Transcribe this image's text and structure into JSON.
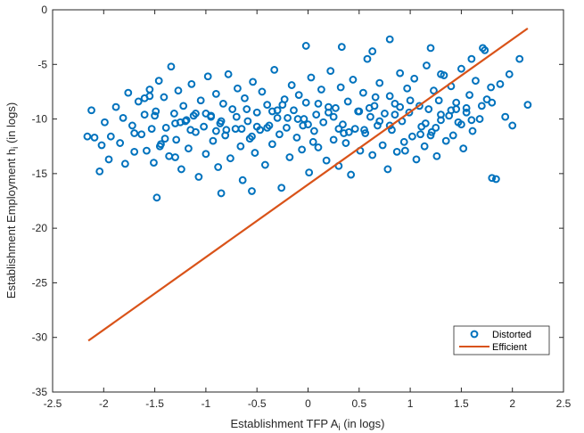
{
  "chart_data": {
    "type": "scatter",
    "xlabel": "Establishment TFP A",
    "xlabel_sub": "i",
    "xlabel_suffix": " (in logs)",
    "ylabel": "Establishment Employment h",
    "ylabel_sub": "i",
    "ylabel_suffix": " (in logs)",
    "xlim": [
      -2.5,
      2.5
    ],
    "ylim": [
      -35,
      0
    ],
    "xticks": [
      -2.5,
      -2,
      -1.5,
      -1,
      -0.5,
      0,
      0.5,
      1,
      1.5,
      2,
      2.5
    ],
    "yticks": [
      0,
      -5,
      -10,
      -15,
      -20,
      -25,
      -30,
      -35
    ],
    "grid": false,
    "legend_position": "bottom-right",
    "series": [
      {
        "name": "Distorted",
        "kind": "scatter",
        "color": "#0072BD",
        "marker": "circle",
        "x": [
          -2.16,
          -2.12,
          -2.09,
          -2.04,
          -2.02,
          -1.99,
          -1.95,
          -1.93,
          -1.88,
          -1.84,
          -1.81,
          -1.79,
          -1.76,
          -1.72,
          -1.7,
          -1.66,
          -1.63,
          -1.6,
          -1.58,
          -1.55,
          -1.53,
          -1.51,
          -1.49,
          -1.46,
          -1.44,
          -1.41,
          -1.39,
          -1.36,
          -1.34,
          -1.31,
          -1.29,
          -1.27,
          -1.24,
          -1.22,
          -1.19,
          -1.17,
          -1.14,
          -1.12,
          -1.1,
          -1.07,
          -1.05,
          -1.02,
          -1.0,
          -0.98,
          -0.95,
          -0.93,
          -0.9,
          -0.88,
          -0.86,
          -0.83,
          -0.81,
          -0.78,
          -0.76,
          -0.74,
          -0.71,
          -0.69,
          -0.66,
          -0.64,
          -0.62,
          -0.59,
          -0.57,
          -0.54,
          -0.52,
          -0.5,
          -0.47,
          -0.45,
          -0.42,
          -0.4,
          -0.38,
          -0.35,
          -0.33,
          -0.3,
          -0.28,
          -0.26,
          -0.23,
          -0.21,
          -0.18,
          -0.16,
          -0.14,
          -0.11,
          -0.09,
          -0.06,
          -0.04,
          -0.02,
          0.01,
          0.03,
          0.06,
          0.08,
          0.1,
          0.13,
          0.15,
          0.18,
          0.2,
          0.22,
          0.25,
          0.27,
          0.3,
          0.32,
          0.34,
          0.37,
          0.39,
          0.42,
          0.44,
          0.46,
          0.49,
          0.51,
          0.54,
          0.56,
          0.58,
          0.61,
          0.63,
          0.66,
          0.68,
          0.7,
          0.73,
          0.75,
          0.78,
          0.8,
          0.82,
          0.85,
          0.87,
          0.9,
          0.92,
          0.94,
          0.97,
          0.99,
          1.02,
          1.04,
          1.06,
          1.09,
          1.11,
          1.14,
          1.16,
          1.18,
          1.21,
          1.23,
          1.26,
          1.28,
          1.3,
          1.33,
          1.35,
          1.38,
          1.4,
          1.42,
          1.45,
          1.47,
          1.5,
          1.52,
          1.55,
          1.58,
          1.61,
          1.64,
          1.68,
          1.71,
          1.75,
          1.79,
          1.84,
          1.88,
          1.93,
          2.0,
          2.07,
          2.15,
          -1.7,
          -1.5,
          -1.3,
          -1.1,
          -0.9,
          -0.7,
          -0.5,
          -0.3,
          -0.1,
          0.1,
          0.3,
          0.5,
          0.7,
          0.9,
          1.1,
          1.3,
          1.5,
          1.7,
          -1.6,
          -1.4,
          -1.2,
          -1.0,
          -0.8,
          -0.6,
          -0.4,
          -0.2,
          0.0,
          0.2,
          0.4,
          0.6,
          0.8,
          1.0,
          1.2,
          1.4,
          1.6,
          1.8,
          -1.55,
          -1.25,
          -0.95,
          -0.65,
          -0.35,
          -0.05,
          0.25,
          0.55,
          0.85,
          1.15,
          1.45,
          -1.45,
          -1.15,
          -0.85,
          -0.55,
          -0.25,
          0.05,
          0.35,
          0.65,
          0.95,
          1.25,
          1.55,
          -0.02,
          0.33,
          0.63,
          0.8,
          1.2,
          1.3,
          1.6,
          1.73,
          1.97,
          -1.3,
          -0.55,
          -0.85,
          -1.48,
          1.8
        ],
        "y": [
          -11.6,
          -9.2,
          -11.7,
          -14.8,
          -12.4,
          -10.3,
          -13.7,
          -11.6,
          -8.9,
          -12.2,
          -9.9,
          -14.1,
          -7.6,
          -10.6,
          -13.0,
          -8.4,
          -11.4,
          -9.6,
          -12.9,
          -7.9,
          -10.9,
          -14.0,
          -9.3,
          -6.5,
          -12.3,
          -8.0,
          -10.8,
          -13.4,
          -5.2,
          -9.5,
          -11.9,
          -7.4,
          -14.6,
          -8.8,
          -10.1,
          -12.7,
          -6.8,
          -9.7,
          -11.2,
          -15.3,
          -8.3,
          -10.7,
          -13.2,
          -6.1,
          -9.8,
          -12.0,
          -7.7,
          -14.4,
          -10.4,
          -8.6,
          -11.5,
          -5.9,
          -13.6,
          -9.1,
          -10.9,
          -7.2,
          -12.5,
          -15.6,
          -8.1,
          -10.2,
          -11.8,
          -6.6,
          -13.1,
          -9.4,
          -11.0,
          -7.5,
          -14.2,
          -8.7,
          -10.6,
          -12.3,
          -5.5,
          -9.9,
          -11.4,
          -16.3,
          -8.2,
          -10.8,
          -13.5,
          -6.9,
          -9.2,
          -11.7,
          -7.8,
          -12.8,
          -10.0,
          -8.5,
          -14.9,
          -6.2,
          -11.1,
          -9.6,
          -12.6,
          -7.3,
          -10.3,
          -13.8,
          -8.9,
          -5.6,
          -11.9,
          -9.0,
          -14.3,
          -7.1,
          -10.5,
          -12.2,
          -8.4,
          -15.1,
          -6.4,
          -10.9,
          -9.3,
          -12.9,
          -7.6,
          -11.3,
          -4.5,
          -9.8,
          -13.3,
          -8.0,
          -10.6,
          -6.7,
          -12.4,
          -9.5,
          -14.6,
          -7.9,
          -11.0,
          -8.6,
          -13.0,
          -5.8,
          -10.2,
          -12.1,
          -7.2,
          -9.4,
          -11.6,
          -6.3,
          -13.7,
          -8.8,
          -10.7,
          -12.5,
          -5.1,
          -9.1,
          -11.2,
          -7.4,
          -13.4,
          -8.3,
          -10.1,
          -6.0,
          -12.0,
          -9.7,
          -7.0,
          -11.5,
          -8.5,
          -10.3,
          -5.4,
          -12.7,
          -9.0,
          -7.8,
          -11.1,
          -6.5,
          -10.0,
          -3.5,
          -8.2,
          -7.1,
          -15.5,
          -6.8,
          -9.8,
          -10.6,
          -4.5,
          -8.7,
          -11.3,
          -9.7,
          -10.4,
          -9.5,
          -11.1,
          -9.8,
          -10.7,
          -9.2,
          -10.0,
          -8.6,
          -10.9,
          -9.3,
          -10.2,
          -8.9,
          -11.4,
          -9.6,
          -10.5,
          -8.8,
          -8.1,
          -11.8,
          -10.2,
          -9.5,
          -11.0,
          -9.1,
          -10.8,
          -9.9,
          -10.5,
          -9.4,
          -11.2,
          -9.0,
          -10.6,
          -8.3,
          -11.5,
          -9.2,
          -10.1,
          -8.5,
          -7.3,
          -10.3,
          -9.7,
          -10.9,
          -9.3,
          -10.6,
          -9.8,
          -11.0,
          -9.6,
          -10.4,
          -9.1,
          -12.5,
          -11.0,
          -10.2,
          -11.6,
          -8.7,
          -12.1,
          -11.3,
          -8.8,
          -12.9,
          -10.8,
          -9.4,
          -3.3,
          -3.4,
          -3.8,
          -2.7,
          -3.5,
          -5.9,
          -4.5,
          -3.7,
          -5.9,
          -13.5,
          -16.6,
          -16.8,
          -17.2,
          -15.4
        ],
        "marker_size_px": 4
      },
      {
        "name": "Efficient",
        "kind": "line",
        "color": "#D95319",
        "x": [
          -2.15,
          2.15
        ],
        "y": [
          -30.3,
          -1.7
        ]
      }
    ]
  }
}
